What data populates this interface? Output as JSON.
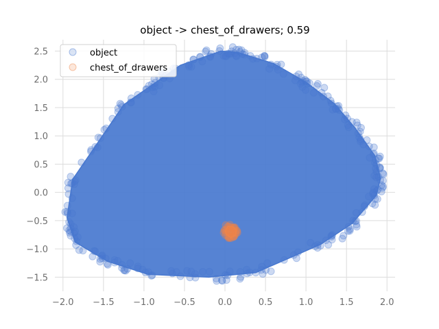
{
  "chart_data": {
    "type": "scatter",
    "title": "object -> chest_of_drawers; 0.59",
    "xlabel": "",
    "ylabel": "",
    "xlim": [
      -2.1,
      2.1
    ],
    "ylim": [
      -1.75,
      2.7
    ],
    "xticks": [
      -2.0,
      -1.5,
      -1.0,
      -0.5,
      0.0,
      0.5,
      1.0,
      1.5,
      2.0
    ],
    "xtick_labels": [
      "−2.0",
      "−1.5",
      "−1.0",
      "−0.5",
      "0.0",
      "0.5",
      "1.0",
      "1.5",
      "2.0"
    ],
    "yticks": [
      -1.5,
      -1.0,
      -0.5,
      0.0,
      0.5,
      1.0,
      1.5,
      2.0,
      2.5
    ],
    "ytick_labels": [
      "−1.5",
      "−1.0",
      "−0.5",
      "0.0",
      "0.5",
      "1.0",
      "1.5",
      "2.0",
      "2.5"
    ],
    "grid": true,
    "legend_position": "top-left",
    "series": [
      {
        "name": "object",
        "color": "#4878cf",
        "alpha": 0.2,
        "hull": [
          [
            -1.95,
            -0.45
          ],
          [
            -1.88,
            0.23
          ],
          [
            -1.25,
            1.55
          ],
          [
            -0.85,
            1.95
          ],
          [
            -0.55,
            2.25
          ],
          [
            -0.05,
            2.5
          ],
          [
            0.15,
            2.48
          ],
          [
            0.6,
            2.28
          ],
          [
            1.0,
            1.95
          ],
          [
            1.35,
            1.57
          ],
          [
            1.6,
            1.15
          ],
          [
            1.85,
            0.65
          ],
          [
            1.92,
            0.25
          ],
          [
            1.87,
            -0.05
          ],
          [
            1.57,
            -0.55
          ],
          [
            1.18,
            -0.92
          ],
          [
            0.38,
            -1.42
          ],
          [
            -0.2,
            -1.5
          ],
          [
            -0.95,
            -1.45
          ],
          [
            -1.45,
            -1.22
          ],
          [
            -1.85,
            -0.88
          ]
        ]
      },
      {
        "name": "chest_of_drawers",
        "color": "#ee854a",
        "alpha": 0.2,
        "hull": [
          [
            0.0,
            -0.68
          ],
          [
            0.04,
            -0.6
          ],
          [
            0.1,
            -0.61
          ],
          [
            0.14,
            -0.67
          ],
          [
            0.13,
            -0.76
          ],
          [
            0.07,
            -0.8
          ],
          [
            0.02,
            -0.75
          ]
        ]
      }
    ]
  }
}
